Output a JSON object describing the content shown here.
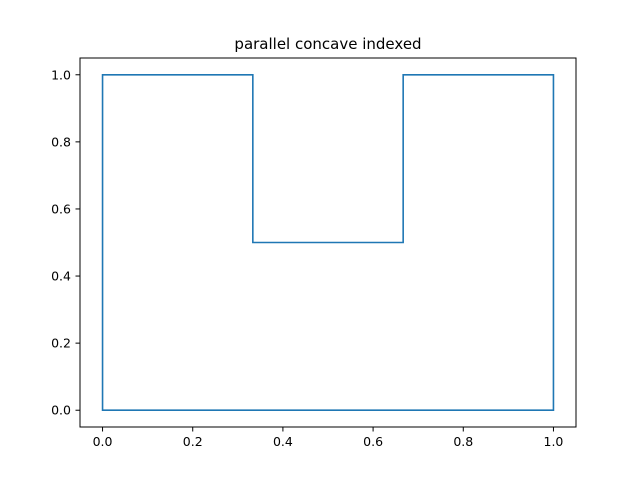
{
  "chart_data": {
    "type": "line",
    "title": "parallel concave indexed",
    "xlabel": "",
    "ylabel": "",
    "xlim": [
      -0.05,
      1.05
    ],
    "ylim": [
      -0.05,
      1.05
    ],
    "grid": false,
    "x_ticks": [
      0.0,
      0.2,
      0.4,
      0.6,
      0.8,
      1.0
    ],
    "y_ticks": [
      0.0,
      0.2,
      0.4,
      0.6,
      0.8,
      1.0
    ],
    "x_tick_labels": [
      "0.0",
      "0.2",
      "0.4",
      "0.6",
      "0.8",
      "1.0"
    ],
    "y_tick_labels": [
      "0.0",
      "0.2",
      "0.4",
      "0.6",
      "0.8",
      "1.0"
    ],
    "series": [
      {
        "color": "#1f77b4",
        "x": [
          0.0,
          0.3333,
          0.3333,
          0.6667,
          0.6667,
          1.0,
          1.0,
          0.0,
          0.0
        ],
        "y": [
          1.0,
          1.0,
          0.5,
          0.5,
          1.0,
          1.0,
          0.0,
          0.0,
          1.0
        ]
      }
    ]
  }
}
